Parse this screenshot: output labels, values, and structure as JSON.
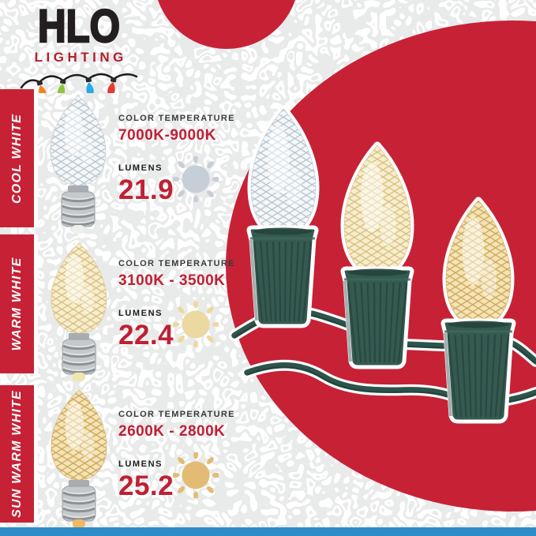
{
  "logo": {
    "brand": "HLO",
    "subtitle": "LIGHTING",
    "string_bulb_colors": [
      "#f5821f",
      "#8cc63f",
      "#29aae1",
      "#e23b34"
    ]
  },
  "sections": [
    {
      "id": "cool-white",
      "label": "COOL WHITE",
      "color_temp_label": "COLOR TEMPERATURE",
      "color_temp_value": "7000K-9000K",
      "lumens_label": "LUMENS",
      "lumens_value": "21.9",
      "sun_icon_color": "#c6ced7",
      "bulb_base_color": "#f5f8fa",
      "bulb_facet_color": "#b6c2cb",
      "bulb_tip_color": "#eef0ec"
    },
    {
      "id": "warm-white",
      "label": "WARM WHITE",
      "color_temp_label": "COLOR TEMPERATURE",
      "color_temp_value": "3100K - 3500K",
      "lumens_label": "LUMENS",
      "lumens_value": "22.4",
      "sun_icon_color": "#ebd9a1",
      "bulb_base_color": "#f8eecb",
      "bulb_facet_color": "#d5bc83",
      "bulb_tip_color": "#efe7ae"
    },
    {
      "id": "sun-warm-white",
      "label": "SUN WARM WHITE",
      "color_temp_label": "COLOR TEMPERATURE",
      "color_temp_value": "2600K - 2800K",
      "lumens_label": "LUMENS",
      "lumens_value": "25.2",
      "sun_icon_color": "#e2bc74",
      "bulb_base_color": "#f5e4b4",
      "bulb_facet_color": "#cba55c",
      "bulb_tip_color": "#f0b963"
    }
  ],
  "colors": {
    "accent_red": "#c72136",
    "value_red": "#bf2034",
    "logo_red": "#b0212e",
    "dark_text": "#231f20",
    "blue_strip": "#2e8dc8",
    "socket_green": "#355a50",
    "socket_rib": "#27463f",
    "wire_green": "#2d544b",
    "outline_white": "#ffffff"
  }
}
